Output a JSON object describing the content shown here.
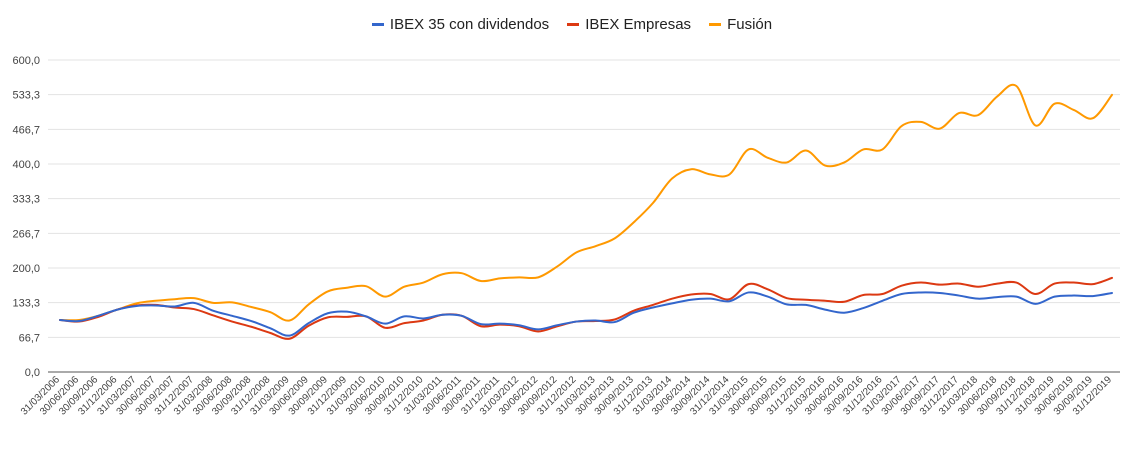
{
  "chart_data": {
    "type": "line",
    "title": "",
    "xlabel": "",
    "ylabel": "",
    "ylim": [
      0,
      600
    ],
    "yticks": [
      "0,0",
      "66,7",
      "133,3",
      "200,0",
      "266,7",
      "333,3",
      "400,0",
      "466,7",
      "533,3",
      "600,0"
    ],
    "ytick_values": [
      0,
      66.7,
      133.3,
      200,
      266.7,
      333.3,
      400,
      466.7,
      533.3,
      600
    ],
    "grid": true,
    "legend_position": "top",
    "x": [
      "31/03/2006",
      "30/06/2006",
      "30/09/2006",
      "31/12/2006",
      "31/03/2007",
      "30/06/2007",
      "30/09/2007",
      "31/12/2007",
      "31/03/2008",
      "30/06/2008",
      "30/09/2008",
      "31/12/2008",
      "31/03/2009",
      "30/06/2009",
      "30/09/2009",
      "31/12/2009",
      "31/03/2010",
      "30/06/2010",
      "30/09/2010",
      "31/12/2010",
      "31/03/2011",
      "30/06/2011",
      "30/09/2011",
      "31/12/2011",
      "31/03/2012",
      "30/06/2012",
      "30/09/2012",
      "31/12/2012",
      "31/03/2013",
      "30/06/2013",
      "30/09/2013",
      "31/12/2013",
      "31/03/2014",
      "30/06/2014",
      "30/09/2014",
      "31/12/2014",
      "31/03/2015",
      "30/06/2015",
      "30/09/2015",
      "31/12/2015",
      "31/03/2016",
      "30/06/2016",
      "30/09/2016",
      "31/12/2016",
      "31/03/2017",
      "30/06/2017",
      "30/09/2017",
      "31/12/2017",
      "31/03/2018",
      "30/06/2018",
      "30/09/2018",
      "31/12/2018",
      "31/03/2019",
      "30/06/2019",
      "30/09/2019",
      "31/12/2019"
    ],
    "series": [
      {
        "name": "IBEX 35 con dividendos",
        "color": "#3366cc",
        "values": [
          100,
          98,
          108,
          120,
          127,
          128,
          126,
          133,
          118,
          108,
          98,
          84,
          70,
          94,
          113,
          116,
          107,
          93,
          107,
          103,
          110,
          108,
          92,
          93,
          90,
          82,
          90,
          97,
          99,
          96,
          114,
          124,
          132,
          139,
          141,
          136,
          153,
          145,
          130,
          129,
          120,
          114,
          123,
          137,
          150,
          153,
          152,
          147,
          141,
          144,
          145,
          131,
          145,
          147,
          146,
          152
        ]
      },
      {
        "name": "IBEX Empresas",
        "color": "#dc3912",
        "values": [
          100,
          97,
          106,
          120,
          128,
          129,
          124,
          121,
          109,
          97,
          87,
          75,
          64,
          89,
          105,
          106,
          107,
          85,
          94,
          99,
          110,
          108,
          88,
          91,
          88,
          78,
          88,
          97,
          98,
          101,
          118,
          129,
          141,
          149,
          150,
          140,
          169,
          159,
          142,
          139,
          137,
          135,
          148,
          150,
          166,
          172,
          168,
          170,
          164,
          170,
          172,
          150,
          170,
          172,
          169,
          181
        ]
      },
      {
        "name": "Fusión",
        "color": "#ff9900",
        "values": [
          100,
          100,
          108,
          120,
          132,
          137,
          140,
          142,
          133,
          134,
          125,
          115,
          99,
          130,
          155,
          162,
          165,
          145,
          164,
          172,
          188,
          190,
          175,
          180,
          182,
          182,
          203,
          230,
          242,
          257,
          288,
          325,
          372,
          390,
          380,
          380,
          428,
          412,
          403,
          426,
          397,
          403,
          428,
          428,
          473,
          481,
          468,
          498,
          494,
          530,
          550,
          474,
          516,
          504,
          488,
          533
        ]
      }
    ]
  }
}
